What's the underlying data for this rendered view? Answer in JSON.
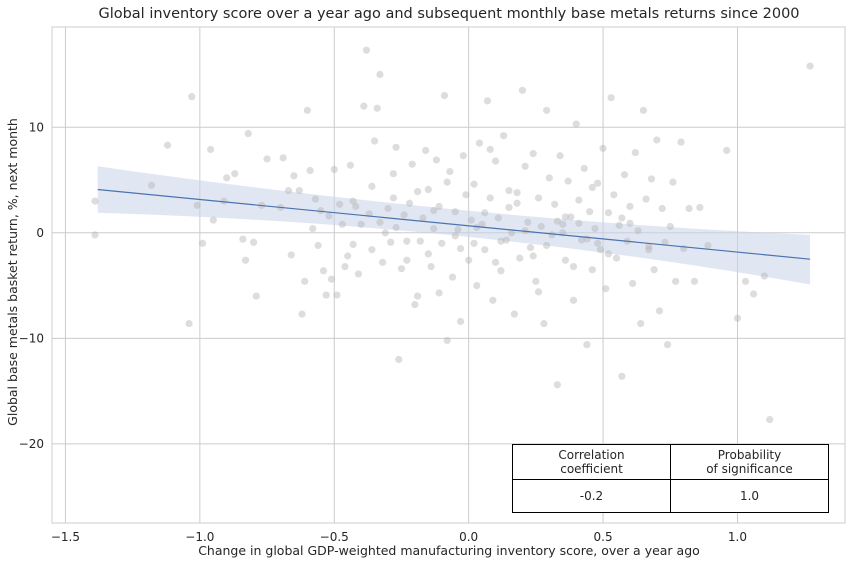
{
  "chart_data": {
    "type": "scatter",
    "title": "Global inventory score over a year ago and subsequent monthly base metals returns since 2000",
    "xlabel": "Change in global GDP-weighted manufacturing inventory score, over a year ago",
    "ylabel": "Global base metals basket return, %, next month",
    "xlim": [
      -1.55,
      1.4
    ],
    "ylim": [
      -27.5,
      19.5
    ],
    "xticks": [
      -1.5,
      -1.0,
      -0.5,
      0.0,
      0.5,
      1.0
    ],
    "xtick_labels": [
      "−1.5",
      "−1.0",
      "−0.5",
      "0.0",
      "0.5",
      "1.0"
    ],
    "yticks": [
      -20,
      -10,
      0,
      10
    ],
    "ytick_labels": [
      "−20",
      "−10",
      "0",
      "10"
    ],
    "grid": true,
    "regression": {
      "x": [
        -1.38,
        1.27
      ],
      "y": [
        4.1,
        -2.5
      ],
      "band_upper": [
        6.3,
        -0.2
      ],
      "band_lower": [
        1.9,
        -4.9
      ],
      "band_mid_x": 0.0,
      "band_mid_upper": 1.8,
      "band_mid_lower": 0.3
    },
    "points": [
      [
        -1.39,
        3.0
      ],
      [
        -1.39,
        -0.2
      ],
      [
        -1.04,
        -8.6
      ],
      [
        -1.03,
        12.9
      ],
      [
        -1.01,
        2.6
      ],
      [
        -0.99,
        -1.0
      ],
      [
        -0.96,
        7.9
      ],
      [
        -0.95,
        1.2
      ],
      [
        -0.91,
        3.0
      ],
      [
        -0.87,
        5.6
      ],
      [
        -0.84,
        -0.6
      ],
      [
        -0.83,
        -2.6
      ],
      [
        -0.82,
        9.4
      ],
      [
        -0.8,
        -0.9
      ],
      [
        -0.79,
        -6.0
      ],
      [
        -0.77,
        2.6
      ],
      [
        -0.75,
        7.0
      ],
      [
        -0.69,
        7.1
      ],
      [
        -0.67,
        4.0
      ],
      [
        -0.65,
        5.4
      ],
      [
        -0.63,
        4.0
      ],
      [
        -0.62,
        -7.7
      ],
      [
        -0.61,
        -4.6
      ],
      [
        -0.6,
        11.6
      ],
      [
        -0.59,
        5.9
      ],
      [
        -0.57,
        3.2
      ],
      [
        -0.56,
        -1.2
      ],
      [
        -0.55,
        2.1
      ],
      [
        -0.54,
        -3.6
      ],
      [
        -0.52,
        1.6
      ],
      [
        -0.51,
        -4.4
      ],
      [
        -0.5,
        6.0
      ],
      [
        -0.49,
        -5.9
      ],
      [
        -0.48,
        2.7
      ],
      [
        -0.47,
        0.8
      ],
      [
        -0.45,
        -2.2
      ],
      [
        -0.44,
        6.4
      ],
      [
        -0.43,
        -1.1
      ],
      [
        -0.42,
        2.5
      ],
      [
        -0.41,
        -3.9
      ],
      [
        -0.4,
        0.8
      ],
      [
        -0.39,
        12.0
      ],
      [
        -0.38,
        17.3
      ],
      [
        -0.37,
        1.8
      ],
      [
        -0.36,
        4.4
      ],
      [
        -0.35,
        8.7
      ],
      [
        -0.34,
        11.8
      ],
      [
        -0.33,
        15.0
      ],
      [
        -0.32,
        -2.8
      ],
      [
        -0.31,
        0.0
      ],
      [
        -0.3,
        2.3
      ],
      [
        -0.29,
        -0.9
      ],
      [
        -0.28,
        5.6
      ],
      [
        -0.27,
        8.1
      ],
      [
        -0.26,
        -12.0
      ],
      [
        -0.25,
        -3.4
      ],
      [
        -0.24,
        1.7
      ],
      [
        -0.23,
        -0.8
      ],
      [
        -0.22,
        2.8
      ],
      [
        -0.21,
        6.5
      ],
      [
        -0.2,
        -6.8
      ],
      [
        -0.19,
        3.9
      ],
      [
        -0.18,
        -0.8
      ],
      [
        -0.17,
        1.4
      ],
      [
        -0.16,
        7.8
      ],
      [
        -0.15,
        4.1
      ],
      [
        -0.14,
        -3.2
      ],
      [
        -0.13,
        0.4
      ],
      [
        -0.12,
        6.9
      ],
      [
        -0.11,
        2.5
      ],
      [
        -0.1,
        -1.0
      ],
      [
        -0.09,
        13.0
      ],
      [
        -0.08,
        -10.2
      ],
      [
        -0.07,
        5.8
      ],
      [
        -0.06,
        -4.2
      ],
      [
        -0.05,
        2.0
      ],
      [
        -0.04,
        0.3
      ],
      [
        -0.03,
        -8.4
      ],
      [
        -0.02,
        7.3
      ],
      [
        -0.01,
        3.6
      ],
      [
        0.0,
        -2.6
      ],
      [
        0.01,
        1.2
      ],
      [
        0.02,
        4.6
      ],
      [
        0.03,
        -5.0
      ],
      [
        0.04,
        8.5
      ],
      [
        0.05,
        0.8
      ],
      [
        0.06,
        -1.6
      ],
      [
        0.07,
        12.5
      ],
      [
        0.08,
        3.3
      ],
      [
        0.09,
        -6.4
      ],
      [
        0.1,
        6.8
      ],
      [
        0.11,
        1.4
      ],
      [
        0.12,
        -3.6
      ],
      [
        0.13,
        9.2
      ],
      [
        0.14,
        -0.7
      ],
      [
        0.15,
        4.0
      ],
      [
        0.16,
        0.0
      ],
      [
        0.17,
        -7.7
      ],
      [
        0.18,
        2.8
      ],
      [
        0.19,
        -2.4
      ],
      [
        0.2,
        13.5
      ],
      [
        0.21,
        6.3
      ],
      [
        0.22,
        1.0
      ],
      [
        0.23,
        -1.4
      ],
      [
        0.24,
        7.5
      ],
      [
        0.25,
        -4.6
      ],
      [
        0.26,
        3.3
      ],
      [
        0.27,
        0.6
      ],
      [
        0.28,
        -8.6
      ],
      [
        0.29,
        11.6
      ],
      [
        0.3,
        5.2
      ],
      [
        0.31,
        -0.2
      ],
      [
        0.32,
        2.7
      ],
      [
        0.33,
        -14.4
      ],
      [
        0.34,
        7.3
      ],
      [
        0.35,
        0.8
      ],
      [
        0.36,
        -2.6
      ],
      [
        0.37,
        4.9
      ],
      [
        0.38,
        1.5
      ],
      [
        0.39,
        -6.4
      ],
      [
        0.4,
        10.3
      ],
      [
        0.41,
        3.1
      ],
      [
        0.42,
        -0.7
      ],
      [
        0.43,
        6.1
      ],
      [
        0.44,
        -10.6
      ],
      [
        0.45,
        2.0
      ],
      [
        0.46,
        -3.5
      ],
      [
        0.47,
        0.4
      ],
      [
        0.48,
        4.7
      ],
      [
        0.49,
        -1.6
      ],
      [
        0.5,
        8.0
      ],
      [
        0.51,
        -5.3
      ],
      [
        0.52,
        1.9
      ],
      [
        0.53,
        12.8
      ],
      [
        0.54,
        3.6
      ],
      [
        0.55,
        -2.4
      ],
      [
        0.56,
        0.7
      ],
      [
        0.57,
        -13.6
      ],
      [
        0.58,
        5.5
      ],
      [
        0.59,
        -0.8
      ],
      [
        0.6,
        2.5
      ],
      [
        0.61,
        -4.8
      ],
      [
        0.62,
        7.6
      ],
      [
        0.63,
        0.2
      ],
      [
        0.64,
        -8.6
      ],
      [
        0.65,
        11.6
      ],
      [
        0.66,
        3.2
      ],
      [
        0.67,
        -1.6
      ],
      [
        0.68,
        5.1
      ],
      [
        0.69,
        -3.5
      ],
      [
        0.7,
        8.8
      ],
      [
        0.71,
        -7.4
      ],
      [
        0.72,
        2.3
      ],
      [
        0.73,
        -0.9
      ],
      [
        0.74,
        -10.6
      ],
      [
        0.75,
        0.6
      ],
      [
        0.76,
        4.8
      ],
      [
        0.77,
        -4.6
      ],
      [
        0.79,
        8.6
      ],
      [
        0.8,
        -1.5
      ],
      [
        0.82,
        2.3
      ],
      [
        0.84,
        -4.6
      ],
      [
        0.86,
        2.4
      ],
      [
        0.89,
        -1.2
      ],
      [
        0.96,
        7.8
      ],
      [
        1.0,
        -8.1
      ],
      [
        1.03,
        -4.6
      ],
      [
        1.06,
        -5.8
      ],
      [
        1.1,
        -4.1
      ],
      [
        1.12,
        -17.7
      ],
      [
        1.27,
        15.8
      ],
      [
        -0.7,
        2.4
      ],
      [
        -0.58,
        0.4
      ],
      [
        -0.46,
        -3.2
      ],
      [
        -0.36,
        -1.6
      ],
      [
        -0.27,
        0.5
      ],
      [
        -0.15,
        -2.0
      ],
      [
        -0.05,
        -0.3
      ],
      [
        0.03,
        0.5
      ],
      [
        0.12,
        -0.8
      ],
      [
        0.21,
        0.2
      ],
      [
        0.29,
        -1.2
      ],
      [
        0.36,
        1.5
      ],
      [
        0.44,
        -0.6
      ],
      [
        0.52,
        -2.0
      ],
      [
        0.6,
        0.9
      ],
      [
        -0.66,
        -2.1
      ],
      [
        -0.53,
        -5.9
      ],
      [
        -0.43,
        3.0
      ],
      [
        -0.33,
        1.0
      ],
      [
        -0.23,
        -2.6
      ],
      [
        -0.13,
        2.1
      ],
      [
        -0.03,
        -1.5
      ],
      [
        0.06,
        1.9
      ],
      [
        0.15,
        2.4
      ],
      [
        0.24,
        -2.2
      ],
      [
        0.33,
        1.1
      ],
      [
        0.41,
        0.9
      ],
      [
        0.48,
        -1.0
      ],
      [
        0.57,
        1.4
      ],
      [
        0.67,
        -1.3
      ],
      [
        -1.12,
        8.3
      ],
      [
        -1.18,
        4.5
      ],
      [
        -0.9,
        5.2
      ],
      [
        0.08,
        7.9
      ],
      [
        -0.19,
        -6.0
      ],
      [
        0.26,
        -5.6
      ],
      [
        0.39,
        -3.2
      ],
      [
        0.46,
        4.3
      ],
      [
        -0.08,
        4.8
      ],
      [
        0.02,
        -1.0
      ],
      [
        0.18,
        3.8
      ],
      [
        0.35,
        0.0
      ],
      [
        -0.28,
        3.3
      ],
      [
        -0.11,
        -5.7
      ],
      [
        0.1,
        -2.8
      ]
    ]
  },
  "table": {
    "header_left": "Correlation\ncoefficient",
    "header_right": "Probability\nof significance",
    "value_left": "-0.2",
    "value_right": "1.0"
  },
  "colors": {
    "points": "#b3b3b3",
    "line": "#4c72b0",
    "band": "#c7d3e9",
    "grid": "#cccccc",
    "frame": "#cccccc"
  }
}
